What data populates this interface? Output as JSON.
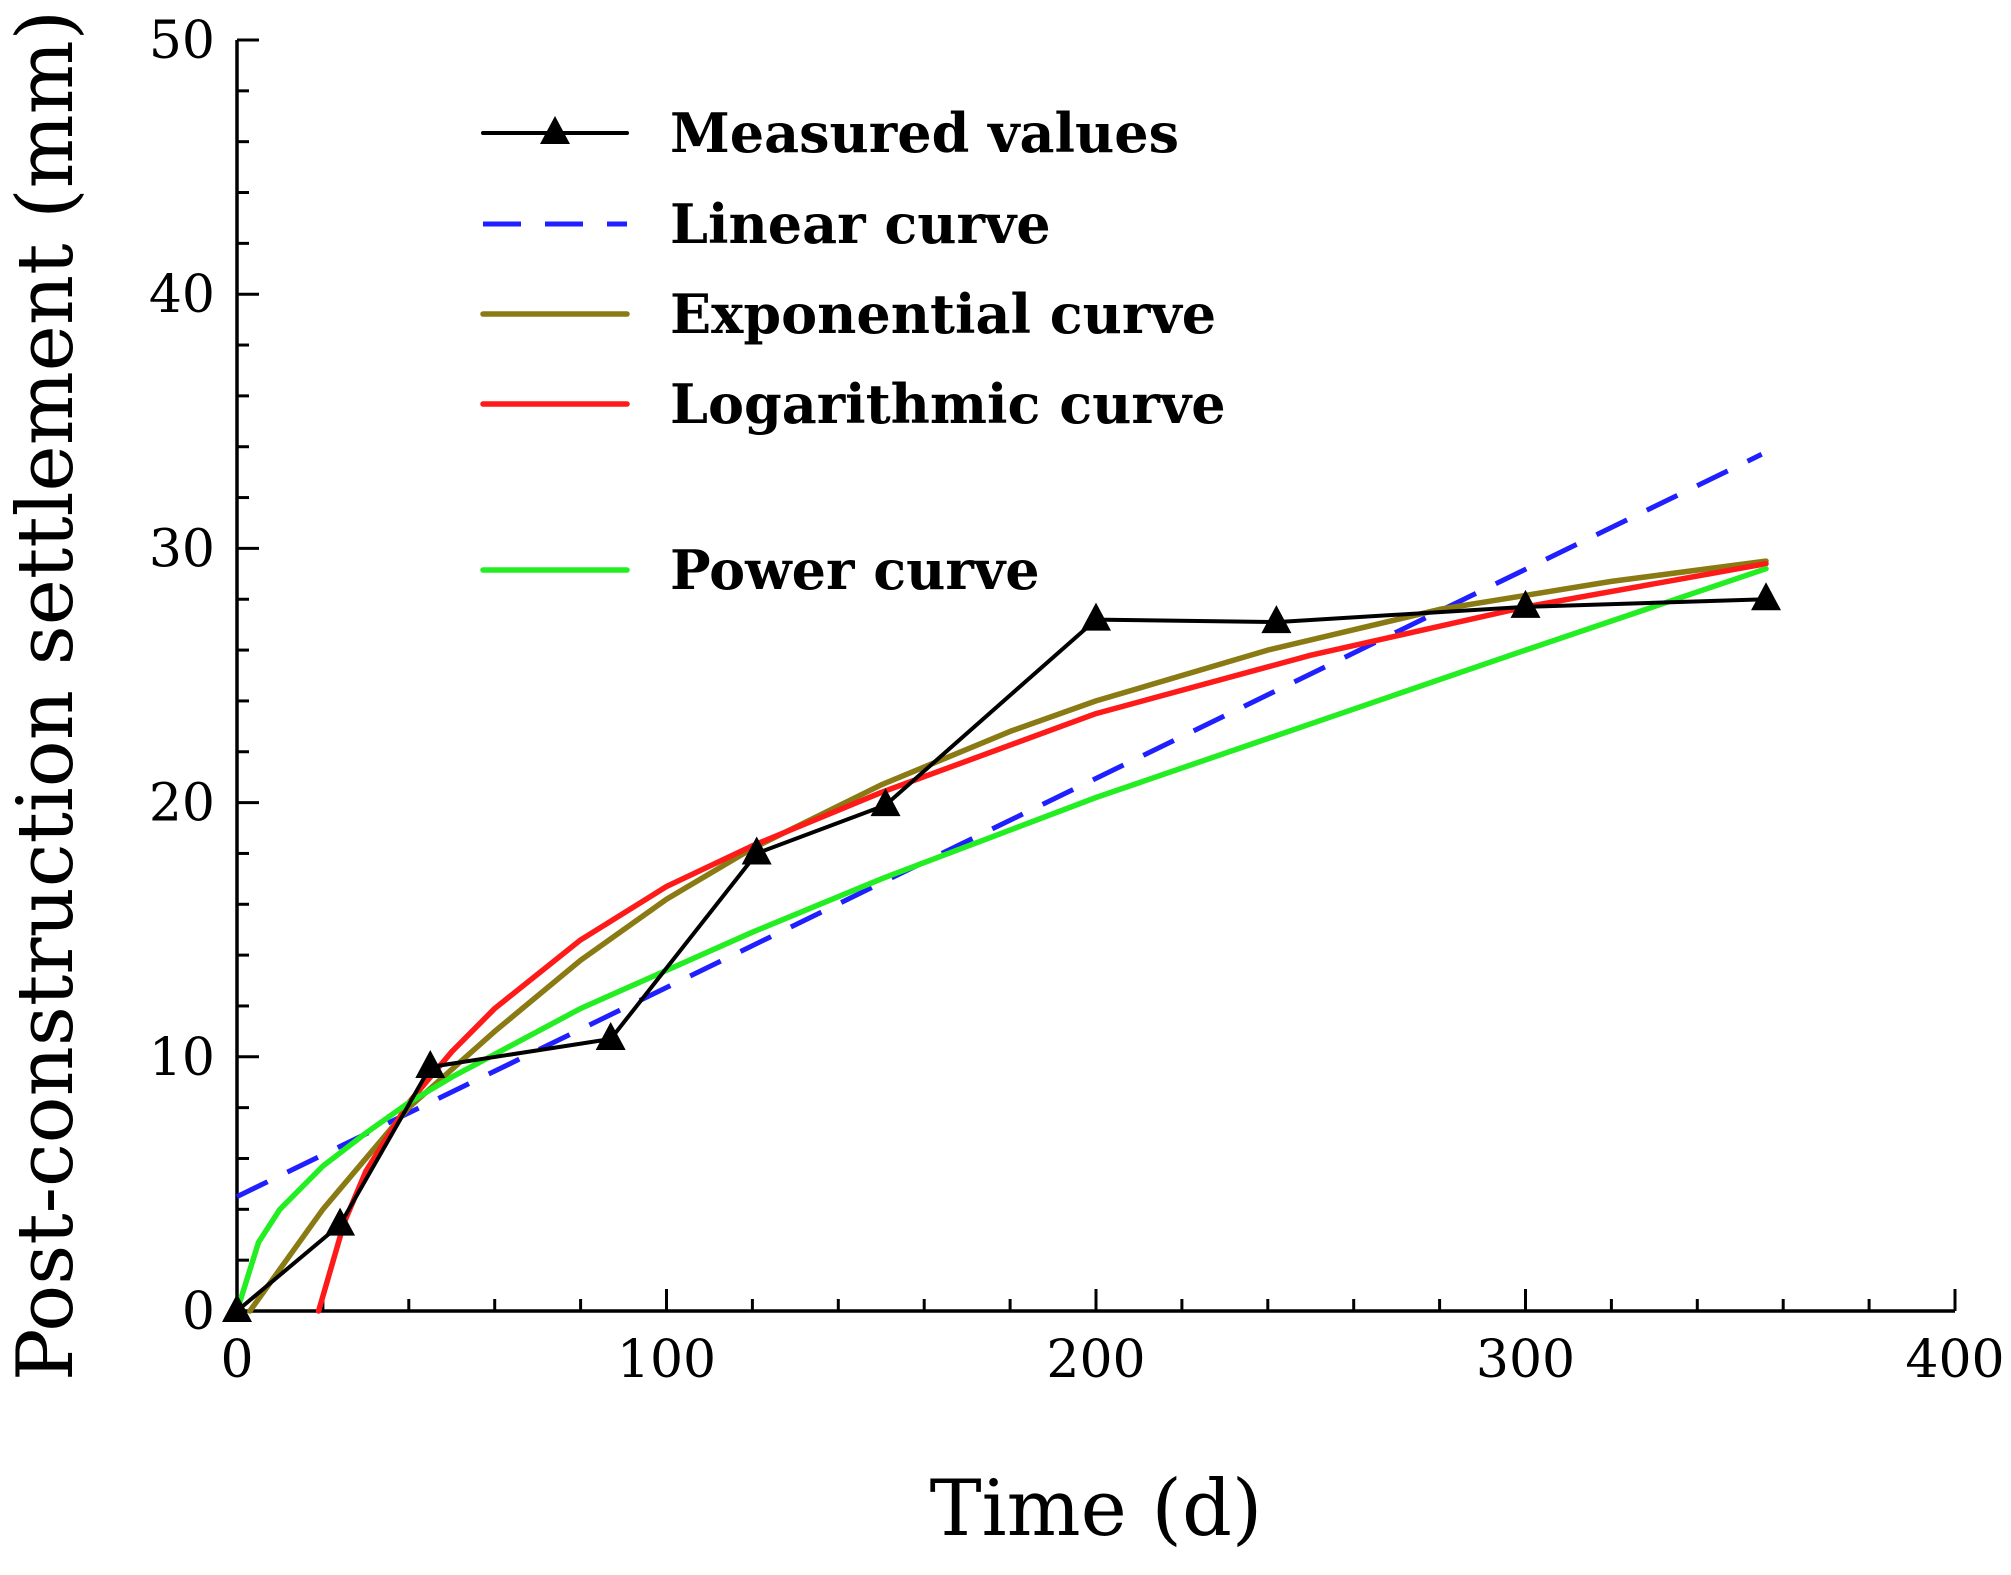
{
  "chart_data": {
    "type": "line",
    "title": "",
    "xlabel": "Time (d)",
    "ylabel": "Post-construction settlement (mm)",
    "xlim": [
      0,
      400
    ],
    "ylim": [
      0,
      50
    ],
    "x_ticks": [
      0,
      100,
      200,
      300,
      400
    ],
    "y_ticks": [
      0,
      10,
      20,
      30,
      40,
      50
    ],
    "grid": false,
    "legend_position": "top-left",
    "series": [
      {
        "name": "Measured values",
        "color": "#000000",
        "style": "solid",
        "marker": "triangle",
        "x": [
          0,
          24,
          45,
          87,
          121,
          151,
          200,
          242,
          300,
          356
        ],
        "y": [
          0,
          3.4,
          9.6,
          10.7,
          18.0,
          19.9,
          27.2,
          27.1,
          27.7,
          28.0
        ]
      },
      {
        "name": "Linear curve",
        "color": "#1f1fff",
        "style": "dashed",
        "x": [
          0,
          355
        ],
        "y": [
          4.5,
          33.7
        ]
      },
      {
        "name": "Exponential curve",
        "color": "#8a7a14",
        "style": "solid",
        "x": [
          3,
          20,
          40,
          60,
          80,
          100,
          120,
          150,
          180,
          200,
          240,
          280,
          320,
          356
        ],
        "y": [
          0,
          4.0,
          8.0,
          11.0,
          13.8,
          16.2,
          18.2,
          20.7,
          22.8,
          24.0,
          26.0,
          27.6,
          28.7,
          29.5
        ]
      },
      {
        "name": "Logarithmic curve",
        "color": "#ff1a1a",
        "style": "solid",
        "x": [
          19,
          25,
          30,
          40,
          50,
          60,
          80,
          100,
          120,
          150,
          200,
          250,
          300,
          356
        ],
        "y": [
          0,
          3.5,
          5.5,
          8.2,
          10.2,
          11.9,
          14.6,
          16.7,
          18.3,
          20.4,
          23.5,
          25.8,
          27.7,
          29.4
        ]
      },
      {
        "name": "Power curve",
        "color": "#22ee22",
        "style": "solid",
        "x": [
          0,
          5,
          10,
          20,
          30,
          40,
          50,
          60,
          80,
          100,
          120,
          150,
          200,
          250,
          300,
          356
        ],
        "y": [
          0,
          2.7,
          4.0,
          5.7,
          7.0,
          8.2,
          9.2,
          10.1,
          11.9,
          13.4,
          14.9,
          17.0,
          20.2,
          23.1,
          26.0,
          29.2
        ]
      }
    ]
  }
}
